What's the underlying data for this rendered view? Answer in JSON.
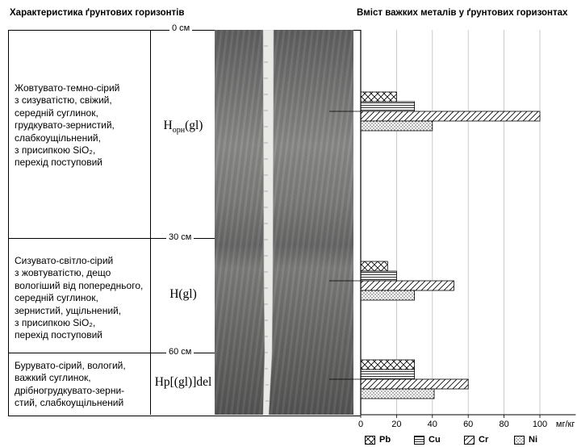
{
  "headers": {
    "left": "Характеристика ґрунтових горизонтів",
    "right": "Вміст важких металів у ґрунтових горизонтах"
  },
  "depth_markers": [
    {
      "label": "0 см"
    },
    {
      "label": "30 см"
    },
    {
      "label": "60 см"
    }
  ],
  "horizons": [
    {
      "name_main": "H",
      "name_sub": "орн",
      "name_tail": "(gl)",
      "description": [
        "Жовтувато-темно-сірий",
        "з сизуватістю, свіжий,",
        "середній суглинок,",
        "грудкувато-зернистий,",
        "слабкоущільнений,",
        "з присипкою SiO₂,",
        "перехід поступовий"
      ]
    },
    {
      "name_main": "H(gl)",
      "name_sub": "",
      "name_tail": "",
      "description": [
        "Сизувато-світло-сірий",
        "з жовтуватістю, дещо",
        "вологіший від попереднього,",
        "середній суглинок,",
        "зернистий, ущільнений,",
        "з присипкою SiO₂,",
        "перехід поступовий"
      ]
    },
    {
      "name_main": "Hp[(gl)]del",
      "name_sub": "",
      "name_tail": "",
      "description": [
        "Бурувато-сірий, вологий,",
        "важкий суглинок,",
        "дрібногрудкувато-зерни-",
        "стий, слабкоущільнений"
      ]
    }
  ],
  "chart_data": {
    "type": "bar",
    "orientation": "horizontal",
    "title": "Вміст важких металів у ґрунтових горизонтах",
    "unit": "мг/кг",
    "xlim": [
      0,
      120
    ],
    "xticks": [
      0,
      20,
      40,
      60,
      80,
      100
    ],
    "grid": true,
    "categories": [
      "Hорн(gl)",
      "H(gl)",
      "Hp[(gl)]del"
    ],
    "series": [
      {
        "name": "Pb",
        "pattern": "crosshatch",
        "values": [
          20,
          15,
          30
        ]
      },
      {
        "name": "Cu",
        "pattern": "horizontal",
        "values": [
          30,
          20,
          30
        ]
      },
      {
        "name": "Cr",
        "pattern": "diagonal",
        "values": [
          100,
          52,
          60
        ]
      },
      {
        "name": "Ni",
        "pattern": "dots",
        "values": [
          40,
          30,
          41
        ]
      }
    ],
    "legend_position": "bottom"
  }
}
